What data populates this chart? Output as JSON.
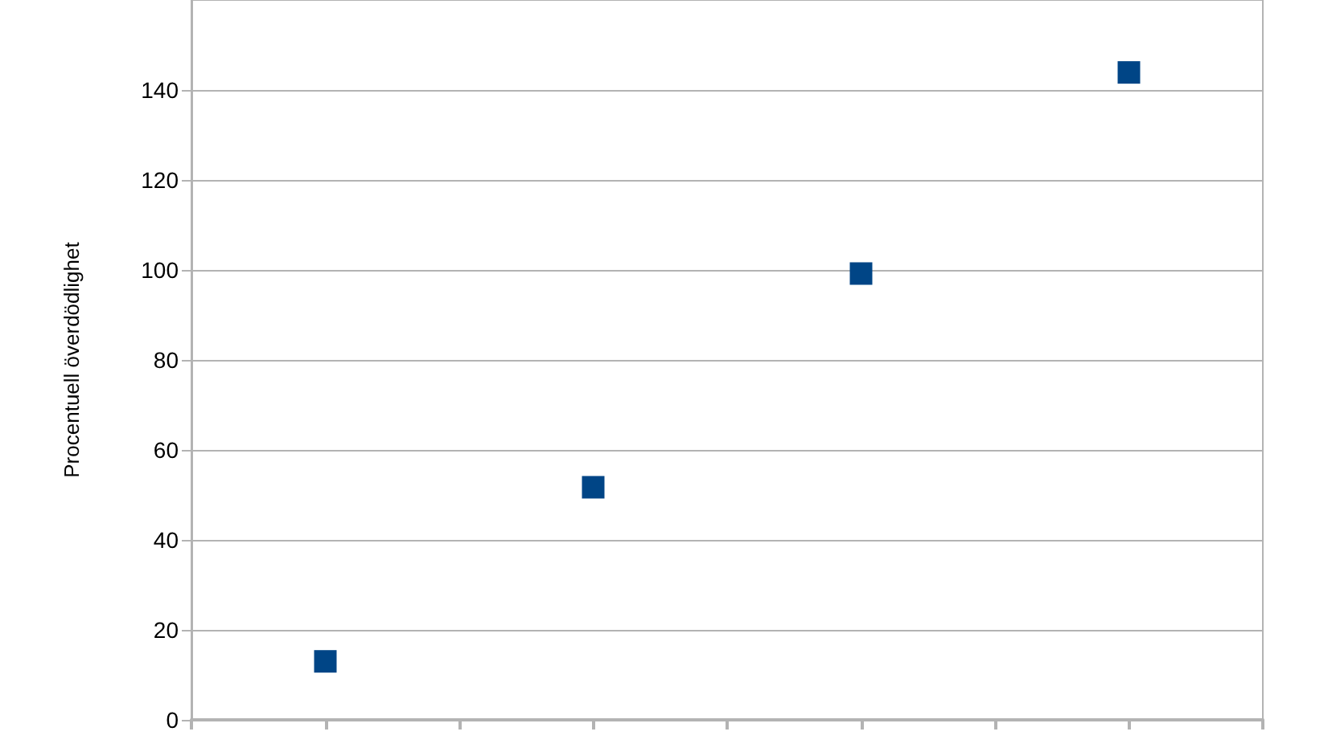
{
  "chart_data": {
    "type": "scatter",
    "ylabel": "Procentuell överdödlighet",
    "categories": [
      null,
      null,
      null,
      null
    ],
    "series": [
      {
        "color": "#004586",
        "values": [
          13,
          51.7,
          99.2,
          143.9
        ]
      }
    ],
    "ylim": [
      0,
      160
    ],
    "yticks": [
      0,
      20,
      40,
      60,
      80,
      100,
      120,
      140
    ],
    "grid": "y",
    "marker": "square"
  }
}
